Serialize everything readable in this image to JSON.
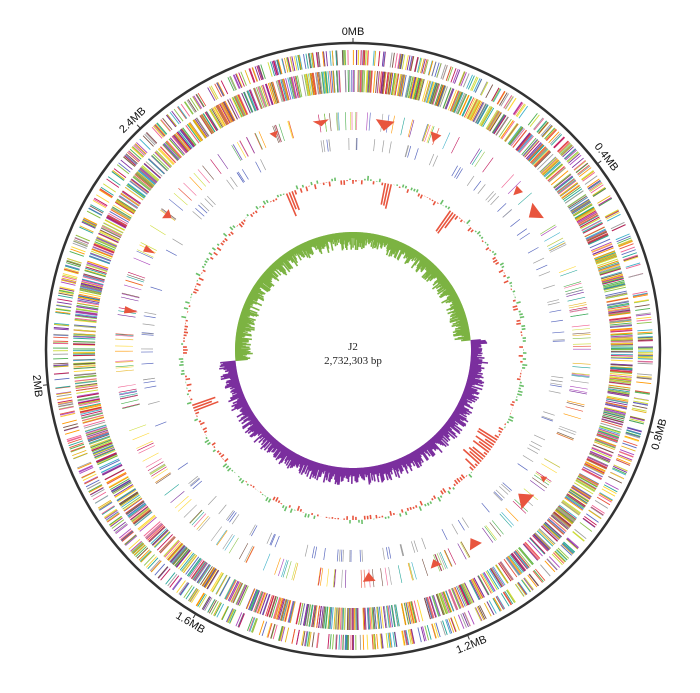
{
  "genome": {
    "name": "J2",
    "length": "2,732,303 bp"
  },
  "position_labels": [
    {
      "text": "0MB",
      "angle": 0
    },
    {
      "text": "0.4MB",
      "angle": 52.7
    },
    {
      "text": "0.8MB",
      "angle": 105.4
    },
    {
      "text": "1.2MB",
      "angle": 158.1
    },
    {
      "text": "1.6MB",
      "angle": 210.8
    },
    {
      "text": "2MB",
      "angle": 263.5
    },
    {
      "text": "2.4MB",
      "angle": 316.2
    }
  ],
  "colors": {
    "backbone": "#333333",
    "gc_skew_positive": "#7cb342",
    "gc_skew_negative": "#7b2f9e",
    "gc_content_positive": "#6abf69",
    "gc_content_negative": "#e8553e",
    "special_features": "#e8553e",
    "cog_palette": [
      "#7b2f9e",
      "#e8b31c",
      "#3fb1c9",
      "#e8553e",
      "#8bc34a",
      "#c2185b",
      "#ff9800",
      "#9e9e9e",
      "#4caf50",
      "#ab47bc",
      "#fdd835",
      "#26a69a",
      "#795548",
      "#f06292",
      "#5c6bc0",
      "#cddc39"
    ]
  }
}
